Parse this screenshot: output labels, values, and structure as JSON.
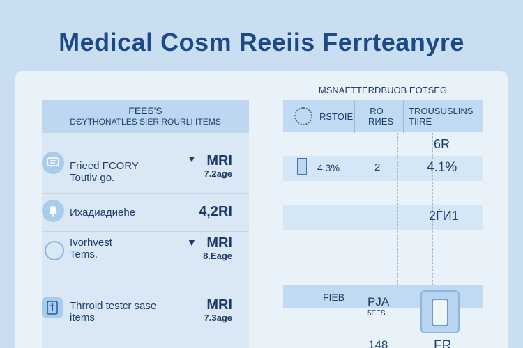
{
  "page": {
    "title": "Medical Cosm Reeiis Ferrteanyre"
  },
  "left": {
    "header_line1": "FEEБ'S",
    "header_line2": "DЄYTHONATLES SIER ROURLI ITEMS",
    "rows": [
      {
        "label_line1": "Frieed FCORY",
        "label_line2": "Toutiv go.",
        "value": "MRI",
        "sub": "7.2age",
        "icon": "chat-icon"
      },
      {
        "label_line1": "Ихадиадиеhe",
        "label_line2": "",
        "value": "4,2RI",
        "sub": "",
        "icon": "bell-icon"
      },
      {
        "label_line1": "Ivorhvest",
        "label_line2": "Tems.",
        "value": "MRI",
        "sub": "8.Eage",
        "icon": "circle-icon"
      },
      {
        "label_line1": "Thrroid testcr sase",
        "label_line2": "items",
        "value": "MRI",
        "sub": "7.3age",
        "icon": "thermometer-icon"
      }
    ]
  },
  "right": {
    "title": "MSNAETTERDBUOB EOTSEG",
    "col2_header_line1": "RO",
    "col2_header_line2": "RИES",
    "col1_header": "RSTOIE",
    "col3_header_line1": "TROUSUSLINS",
    "col3_header_line2": "TIIRE",
    "cell_top_right": "6R",
    "row1_col1": "4.3%",
    "row1_col2": "2",
    "row1_col3": "4.1%",
    "row2_col3": "2ЃИ1",
    "row3_col1": "FIEB",
    "row3_col2_line1": "PJA",
    "row3_col2_line2": "5EES",
    "bottom_col2": "148",
    "bottom_col3": "FR"
  }
}
